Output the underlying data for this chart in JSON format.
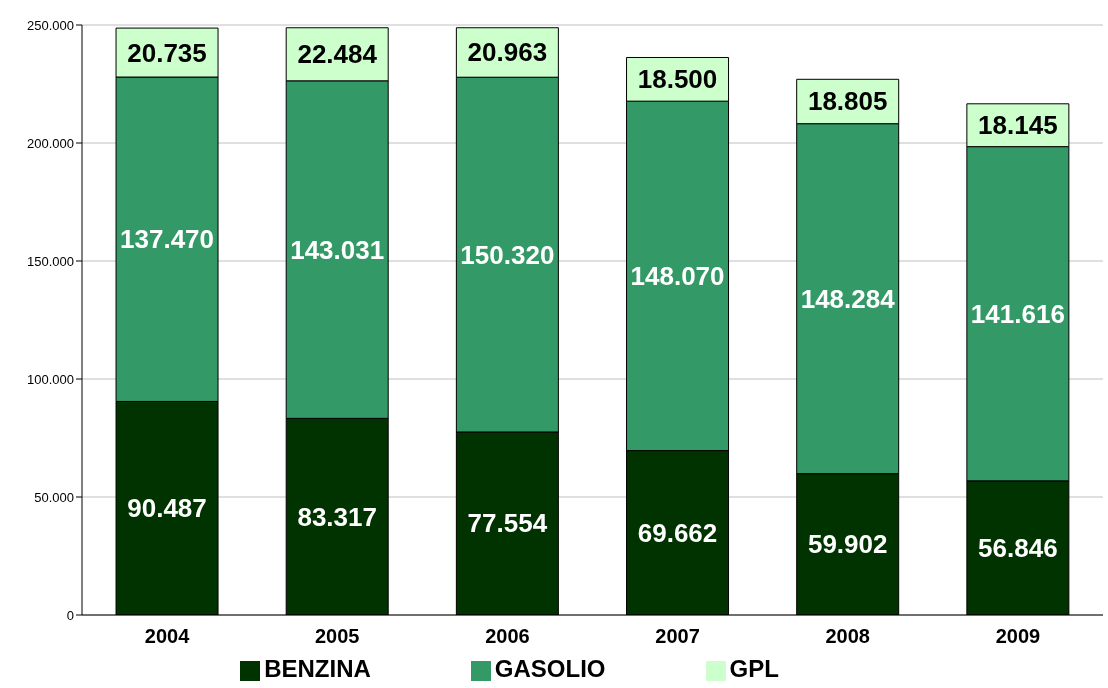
{
  "chart_data": {
    "type": "bar",
    "stacked": true,
    "categories": [
      "2004",
      "2005",
      "2006",
      "2007",
      "2008",
      "2009"
    ],
    "series": [
      {
        "name": "BENZINA",
        "color": "#003300",
        "values": [
          90487,
          83317,
          77554,
          69662,
          59902,
          56846
        ],
        "value_labels": [
          "90.487",
          "83.317",
          "77.554",
          "69.662",
          "59.902",
          "56.846"
        ]
      },
      {
        "name": "GASOLIO",
        "color": "#339966",
        "values": [
          137470,
          143031,
          150320,
          148070,
          148284,
          141616
        ],
        "value_labels": [
          "137.470",
          "143.031",
          "150.320",
          "148.070",
          "148.284",
          "141.616"
        ]
      },
      {
        "name": "GPL",
        "color": "#ccffcc",
        "values": [
          20735,
          22484,
          20963,
          18500,
          18805,
          18145
        ],
        "value_labels": [
          "20.735",
          "22.484",
          "20.963",
          "18.500",
          "18.805",
          "18.145"
        ]
      }
    ],
    "ylim": [
      0,
      250000
    ],
    "yticks": [
      {
        "value": 0,
        "label": "0"
      },
      {
        "value": 50000,
        "label": "50.000"
      },
      {
        "value": 100000,
        "label": "100.000"
      },
      {
        "value": 150000,
        "label": "150.000"
      },
      {
        "value": 200000,
        "label": "200.000"
      },
      {
        "value": 250000,
        "label": "250.000"
      }
    ],
    "grid": "y",
    "legend": "bottom"
  }
}
